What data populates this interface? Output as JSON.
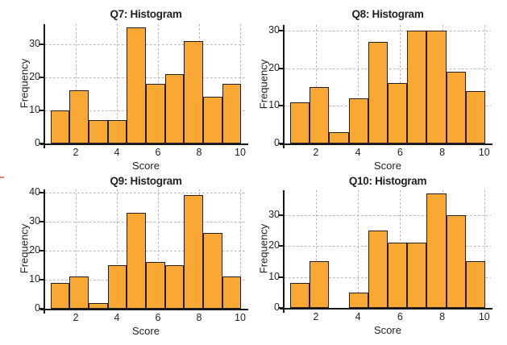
{
  "styles": {
    "bar_fill": "#FAA834",
    "bar_border": "#231F20",
    "grid_color": "#B2B2B2",
    "axis_color": "#1A1A1A",
    "text_color": "#231F20",
    "background": "#FFFFFF",
    "pink_dash_color": "#ED8076"
  },
  "chart_data": [
    {
      "type": "bar",
      "title": "Q7: Histogram",
      "xlabel": "Score",
      "ylabel": "Frequency",
      "categories": [
        1,
        2,
        3,
        4,
        5,
        6,
        7,
        8,
        9,
        10
      ],
      "values": [
        10,
        16,
        7,
        7,
        35,
        18,
        21,
        31,
        14,
        18
      ],
      "xticks": [
        2,
        4,
        6,
        8,
        10
      ],
      "yticks": [
        0,
        10,
        20,
        30
      ],
      "ylim": [
        0,
        36
      ],
      "xlim": [
        0.75,
        10.15
      ],
      "grid": "dashed",
      "legend": "none"
    },
    {
      "type": "bar",
      "title": "Q8: Histogram",
      "xlabel": "Score",
      "ylabel": "Frequency",
      "categories": [
        1,
        2,
        3,
        4,
        5,
        6,
        7,
        8,
        9,
        10
      ],
      "values": [
        11,
        15,
        3,
        12,
        27,
        16,
        30,
        30,
        19,
        14
      ],
      "xticks": [
        2,
        4,
        6,
        8,
        10
      ],
      "yticks": [
        0,
        10,
        20,
        30
      ],
      "ylim": [
        0,
        31.5
      ],
      "xlim": [
        0.75,
        10.15
      ],
      "grid": "dashed",
      "legend": "none"
    },
    {
      "type": "bar",
      "title": "Q9: Histogram",
      "xlabel": "Score",
      "ylabel": "Frequency",
      "categories": [
        1,
        2,
        3,
        4,
        5,
        6,
        7,
        8,
        9,
        10
      ],
      "values": [
        9,
        11,
        2,
        15,
        33,
        16,
        15,
        39,
        26,
        11
      ],
      "xticks": [
        2,
        4,
        6,
        8,
        10
      ],
      "yticks": [
        0,
        10,
        20,
        30,
        40
      ],
      "ylim": [
        0,
        41
      ],
      "xlim": [
        0.75,
        10.15
      ],
      "grid": "dashed",
      "legend": "none"
    },
    {
      "type": "bar",
      "title": "Q10: Histogram",
      "xlabel": "Score",
      "ylabel": "Frequency",
      "categories": [
        1,
        2,
        3,
        4,
        5,
        6,
        7,
        8,
        9,
        10
      ],
      "values": [
        8,
        15,
        0,
        5,
        25,
        21,
        21,
        37,
        30,
        15
      ],
      "xticks": [
        2,
        4,
        6,
        8,
        10
      ],
      "yticks": [
        0,
        10,
        20,
        30
      ],
      "ylim": [
        0,
        38
      ],
      "grid": "dashed",
      "legend": "none"
    }
  ]
}
